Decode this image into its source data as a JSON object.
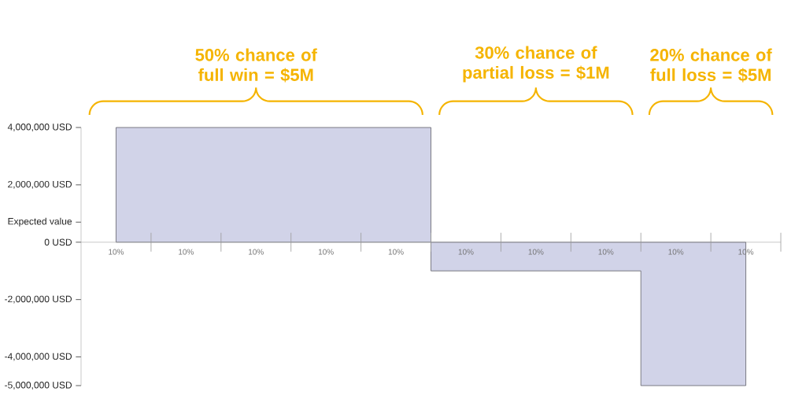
{
  "chart_data": {
    "type": "area",
    "categories": [
      "10%",
      "10%",
      "10%",
      "10%",
      "10%",
      "10%",
      "10%",
      "10%",
      "10%",
      "10%"
    ],
    "values": [
      4000000,
      4000000,
      4000000,
      4000000,
      4000000,
      -1000000,
      -1000000,
      -1000000,
      -5000000,
      -5000000
    ],
    "color": "#d1d3e8",
    "ylim": [
      -5000000,
      4000000
    ],
    "yticks": [
      {
        "value": -5000000,
        "label": "-5,000,000 USD"
      },
      {
        "value": -4000000,
        "label": "-4,000,000 USD"
      },
      {
        "value": -2000000,
        "label": "-2,000,000 USD"
      },
      {
        "value": 0,
        "label": "0 USD"
      },
      {
        "value": 700000,
        "label": "Expected value"
      },
      {
        "value": 2000000,
        "label": "2,000,000 USD"
      },
      {
        "value": 4000000,
        "label": "4,000,000 USD"
      }
    ],
    "annotations": [
      "50% chance of full win = $5M",
      "30% chance of partial loss = $1M",
      "20% chance of full loss = $5M"
    ]
  }
}
